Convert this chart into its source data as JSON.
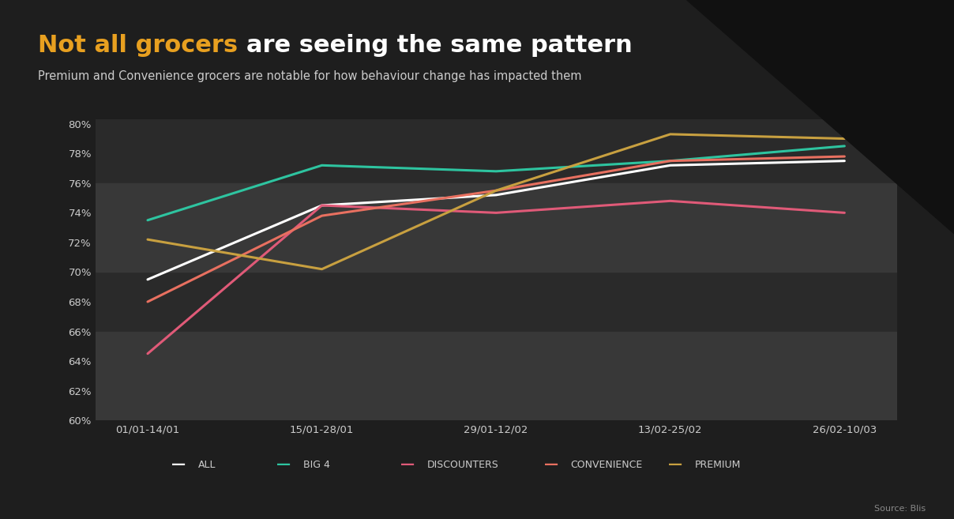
{
  "title_part1": "Not all grocers ",
  "title_part2": "are seeing the same pattern",
  "subtitle": "Premium and Convenience grocers are notable for how behaviour change has impacted them",
  "source": "Source: Blis",
  "background_color": "#1e1e1e",
  "plot_bg_color": "#2a2a2a",
  "band_color_light": "#383838",
  "x_labels": [
    "01/01-14/01",
    "15/01-28/01",
    "29/01-12/02",
    "13/02-25/02",
    "26/02-10/03"
  ],
  "y_min": 60,
  "y_max": 80,
  "y_ticks": [
    60,
    62,
    64,
    66,
    68,
    70,
    72,
    74,
    76,
    78,
    80
  ],
  "series": {
    "ALL": {
      "color": "#ffffff",
      "values": [
        69.5,
        74.5,
        75.2,
        77.2,
        77.5
      ]
    },
    "BIG 4": {
      "color": "#2ec4a0",
      "values": [
        73.5,
        77.2,
        76.8,
        77.5,
        78.5
      ]
    },
    "DISCOUNTERS": {
      "color": "#e05a78",
      "values": [
        64.5,
        74.5,
        74.0,
        74.8,
        74.0
      ]
    },
    "CONVENIENCE": {
      "color": "#e87060",
      "values": [
        68.0,
        73.8,
        75.5,
        77.5,
        77.8
      ]
    },
    "PREMIUM": {
      "color": "#c8a040",
      "values": [
        72.2,
        70.2,
        75.5,
        79.3,
        79.0
      ]
    }
  },
  "title_color_highlight": "#e8a020",
  "title_color_normal": "#ffffff",
  "subtitle_color": "#cccccc",
  "tick_label_color": "#cccccc",
  "blis_logo_color": "#2ec4a0",
  "legend_text_color": "#cccccc"
}
